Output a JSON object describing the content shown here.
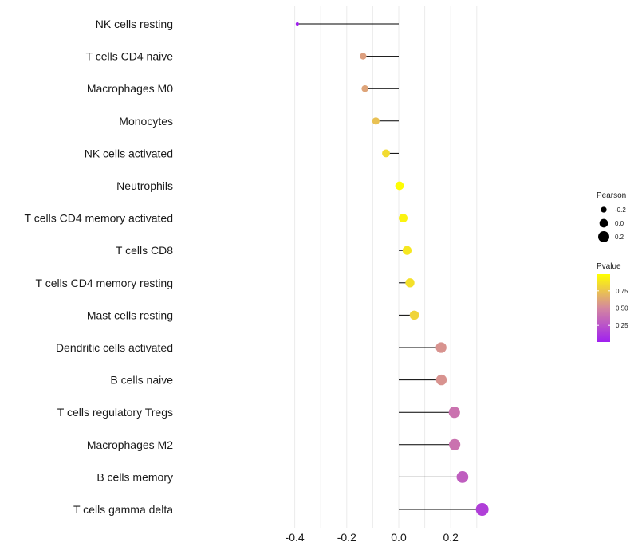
{
  "chart_data": {
    "type": "lollipop",
    "title": "",
    "xlabel": "",
    "ylabel": "",
    "xlim": [
      -0.42,
      0.33
    ],
    "xticks": [
      -0.4,
      -0.2,
      0.0,
      0.2
    ],
    "xtick_labels": [
      "-0.4",
      "-0.2",
      "0.0",
      "0.2"
    ],
    "grid": true,
    "baseline": 0.0,
    "categories": [
      "NK cells resting",
      "T cells CD4 naive",
      "Macrophages M0",
      "Monocytes",
      "NK cells activated",
      "Neutrophils",
      "T cells CD4 memory activated",
      "T cells CD8",
      "T cells CD4 memory resting",
      "Mast cells resting",
      "Dendritic cells activated",
      "B cells naive",
      "T cells regulatory  Tregs ",
      "Macrophages M2",
      "B cells memory",
      "T cells gamma delta"
    ],
    "pearson": [
      -0.39,
      -0.137,
      -0.13,
      -0.088,
      -0.049,
      0.003,
      0.017,
      0.032,
      0.043,
      0.06,
      0.163,
      0.164,
      0.214,
      0.215,
      0.245,
      0.321
    ],
    "pvalue": [
      0.01,
      0.6,
      0.62,
      0.74,
      0.85,
      0.99,
      0.95,
      0.9,
      0.87,
      0.82,
      0.55,
      0.55,
      0.4,
      0.4,
      0.3,
      0.15
    ],
    "legend": {
      "position": "right",
      "size_title": "Pearson",
      "size_items": [
        {
          "label": "-0.2",
          "value": -0.2
        },
        {
          "label": "0.0",
          "value": 0.0
        },
        {
          "label": "0.2",
          "value": 0.2
        }
      ],
      "color_title": "Pvalue",
      "color_ticks": [
        {
          "label": "0.75",
          "value": 0.75
        },
        {
          "label": "0.50",
          "value": 0.5
        },
        {
          "label": "0.25",
          "value": 0.25
        }
      ],
      "color_range": [
        0.01,
        0.99
      ]
    },
    "colors": {
      "low": "#a020f0",
      "mid": "#d4879f",
      "high": "#ffff00",
      "stem": "#000000",
      "grid": "#ebebeb"
    }
  }
}
